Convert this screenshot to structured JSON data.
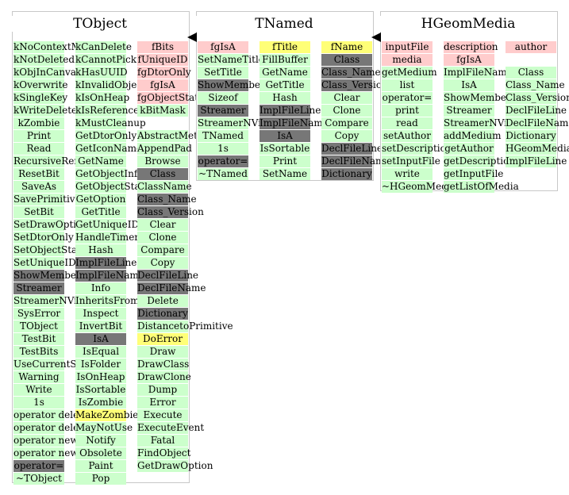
{
  "classes": [
    {
      "name": "TObject",
      "columns": [
        [
          {
            "text": "kNoContextMenu",
            "type": "green"
          },
          {
            "text": "kNotDeleted",
            "type": "green"
          },
          {
            "text": "kObjInCanvas",
            "type": "green"
          },
          {
            "text": "kOverwrite",
            "type": "green"
          },
          {
            "text": "kSingleKey",
            "type": "green"
          },
          {
            "text": "kWriteDelete",
            "type": "green"
          },
          {
            "text": "kZombie",
            "type": "green"
          },
          {
            "text": "Print",
            "type": "green"
          },
          {
            "text": "Read",
            "type": "green"
          },
          {
            "text": "RecursiveRemove",
            "type": "green"
          },
          {
            "text": "ResetBit",
            "type": "green"
          },
          {
            "text": "SaveAs",
            "type": "green"
          },
          {
            "text": "SavePrimitive",
            "type": "green"
          },
          {
            "text": "SetBit",
            "type": "green"
          },
          {
            "text": "SetDrawOption",
            "type": "green"
          },
          {
            "text": "SetDtorOnly",
            "type": "green"
          },
          {
            "text": "SetObjectStat",
            "type": "green"
          },
          {
            "text": "SetUniqueID",
            "type": "green"
          },
          {
            "text": "ShowMembers",
            "type": "grey"
          },
          {
            "text": "Streamer",
            "type": "grey"
          },
          {
            "text": "StreamerNVirtual",
            "type": "green"
          },
          {
            "text": "SysError",
            "type": "green"
          },
          {
            "text": "TObject",
            "type": "green"
          },
          {
            "text": "TestBit",
            "type": "green"
          },
          {
            "text": "TestBits",
            "type": "green"
          },
          {
            "text": "UseCurrentStyle",
            "type": "green"
          },
          {
            "text": "Warning",
            "type": "green"
          },
          {
            "text": "Write",
            "type": "green"
          },
          {
            "text": "1s",
            "type": "green"
          },
          {
            "text": "operator delete",
            "type": "green"
          },
          {
            "text": "operator delete[]",
            "type": "green"
          },
          {
            "text": "operator new",
            "type": "green"
          },
          {
            "text": "operator new[]",
            "type": "green"
          },
          {
            "text": "operator=",
            "type": "grey"
          },
          {
            "text": "~TObject",
            "type": "green"
          }
        ],
        [
          {
            "text": "kCanDelete",
            "type": "green"
          },
          {
            "text": "kCannotPick",
            "type": "green"
          },
          {
            "text": "kHasUUID",
            "type": "green"
          },
          {
            "text": "kInvalidObject",
            "type": "green"
          },
          {
            "text": "kIsOnHeap",
            "type": "green"
          },
          {
            "text": "kIsReferenced",
            "type": "green"
          },
          {
            "text": "kMustCleanup",
            "type": "green"
          },
          {
            "text": "GetDtorOnly",
            "type": "green"
          },
          {
            "text": "GetIconName",
            "type": "green"
          },
          {
            "text": "GetName",
            "type": "green"
          },
          {
            "text": "GetObjectInfo",
            "type": "green"
          },
          {
            "text": "GetObjectStat",
            "type": "green"
          },
          {
            "text": "GetOption",
            "type": "green"
          },
          {
            "text": "GetTitle",
            "type": "green"
          },
          {
            "text": "GetUniqueID",
            "type": "green"
          },
          {
            "text": "HandleTimer",
            "type": "green"
          },
          {
            "text": "Hash",
            "type": "green"
          },
          {
            "text": "ImplFileLine",
            "type": "grey"
          },
          {
            "text": "ImplFileName",
            "type": "grey"
          },
          {
            "text": "Info",
            "type": "green"
          },
          {
            "text": "InheritsFrom",
            "type": "green"
          },
          {
            "text": "Inspect",
            "type": "green"
          },
          {
            "text": "InvertBit",
            "type": "green"
          },
          {
            "text": "IsA",
            "type": "grey"
          },
          {
            "text": "IsEqual",
            "type": "green"
          },
          {
            "text": "IsFolder",
            "type": "green"
          },
          {
            "text": "IsOnHeap",
            "type": "green"
          },
          {
            "text": "IsSortable",
            "type": "green"
          },
          {
            "text": "IsZombie",
            "type": "green"
          },
          {
            "text": "MakeZombie",
            "type": "yellow"
          },
          {
            "text": "MayNotUse",
            "type": "green"
          },
          {
            "text": "Notify",
            "type": "green"
          },
          {
            "text": "Obsolete",
            "type": "green"
          },
          {
            "text": "Paint",
            "type": "green"
          },
          {
            "text": "Pop",
            "type": "green"
          }
        ],
        [
          {
            "text": "fBits",
            "type": "pink"
          },
          {
            "text": "fUniqueID",
            "type": "pink"
          },
          {
            "text": "fgDtorOnly",
            "type": "pink"
          },
          {
            "text": "fgIsA",
            "type": "pink"
          },
          {
            "text": "fgObjectStat",
            "type": "pink"
          },
          {
            "text": "kBitMask",
            "type": "green"
          },
          {
            "text": "",
            "type": "blank"
          },
          {
            "text": "AbstractMethod",
            "type": "green"
          },
          {
            "text": "AppendPad",
            "type": "green"
          },
          {
            "text": "Browse",
            "type": "green"
          },
          {
            "text": "Class",
            "type": "grey"
          },
          {
            "text": "ClassName",
            "type": "green"
          },
          {
            "text": "Class_Name",
            "type": "grey"
          },
          {
            "text": "Class_Version",
            "type": "grey"
          },
          {
            "text": "Clear",
            "type": "green"
          },
          {
            "text": "Clone",
            "type": "green"
          },
          {
            "text": "Compare",
            "type": "green"
          },
          {
            "text": "Copy",
            "type": "green"
          },
          {
            "text": "DeclFileLine",
            "type": "grey"
          },
          {
            "text": "DeclFileName",
            "type": "grey"
          },
          {
            "text": "Delete",
            "type": "green"
          },
          {
            "text": "Dictionary",
            "type": "grey"
          },
          {
            "text": "DistancetoPrimitive",
            "type": "green"
          },
          {
            "text": "DoError",
            "type": "yellow"
          },
          {
            "text": "Draw",
            "type": "green"
          },
          {
            "text": "DrawClass",
            "type": "green"
          },
          {
            "text": "DrawClone",
            "type": "green"
          },
          {
            "text": "Dump",
            "type": "green"
          },
          {
            "text": "Error",
            "type": "green"
          },
          {
            "text": "Execute",
            "type": "green"
          },
          {
            "text": "ExecuteEvent",
            "type": "green"
          },
          {
            "text": "Fatal",
            "type": "green"
          },
          {
            "text": "FindObject",
            "type": "green"
          },
          {
            "text": "GetDrawOption",
            "type": "green"
          }
        ]
      ]
    },
    {
      "name": "TNamed",
      "columns": [
        [
          {
            "text": "fgIsA",
            "type": "pink"
          },
          {
            "text": "SetNameTitle",
            "type": "green"
          },
          {
            "text": "SetTitle",
            "type": "green"
          },
          {
            "text": "ShowMembers",
            "type": "grey"
          },
          {
            "text": "Sizeof",
            "type": "green"
          },
          {
            "text": "Streamer",
            "type": "grey"
          },
          {
            "text": "StreamerNVirtual",
            "type": "green"
          },
          {
            "text": "TNamed",
            "type": "green"
          },
          {
            "text": "1s",
            "type": "green"
          },
          {
            "text": "operator=",
            "type": "grey"
          },
          {
            "text": "~TNamed",
            "type": "green"
          }
        ],
        [
          {
            "text": "fTitle",
            "type": "yellow"
          },
          {
            "text": "FillBuffer",
            "type": "green"
          },
          {
            "text": "GetName",
            "type": "green"
          },
          {
            "text": "GetTitle",
            "type": "green"
          },
          {
            "text": "Hash",
            "type": "green"
          },
          {
            "text": "ImplFileLine",
            "type": "grey"
          },
          {
            "text": "ImplFileName",
            "type": "grey"
          },
          {
            "text": "IsA",
            "type": "grey"
          },
          {
            "text": "IsSortable",
            "type": "green"
          },
          {
            "text": "Print",
            "type": "green"
          },
          {
            "text": "SetName",
            "type": "green"
          }
        ],
        [
          {
            "text": "fName",
            "type": "yellow"
          },
          {
            "text": "Class",
            "type": "grey"
          },
          {
            "text": "Class_Name",
            "type": "grey"
          },
          {
            "text": "Class_Version",
            "type": "grey"
          },
          {
            "text": "Clear",
            "type": "green"
          },
          {
            "text": "Clone",
            "type": "green"
          },
          {
            "text": "Compare",
            "type": "green"
          },
          {
            "text": "Copy",
            "type": "green"
          },
          {
            "text": "DeclFileLine",
            "type": "grey"
          },
          {
            "text": "DeclFileName",
            "type": "grey"
          },
          {
            "text": "Dictionary",
            "type": "grey"
          }
        ]
      ]
    },
    {
      "name": "HGeomMedia",
      "columns": [
        [
          {
            "text": "inputFile",
            "type": "pink"
          },
          {
            "text": "media",
            "type": "pink"
          },
          {
            "text": "getMedium",
            "type": "green"
          },
          {
            "text": "list",
            "type": "green"
          },
          {
            "text": "operator=",
            "type": "green"
          },
          {
            "text": "print",
            "type": "green"
          },
          {
            "text": "read",
            "type": "green"
          },
          {
            "text": "setAuthor",
            "type": "green"
          },
          {
            "text": "setDescription",
            "type": "green"
          },
          {
            "text": "setInputFile",
            "type": "green"
          },
          {
            "text": "write",
            "type": "green"
          },
          {
            "text": "~HGeomMedia",
            "type": "green"
          }
        ],
        [
          {
            "text": "description",
            "type": "pink"
          },
          {
            "text": "fgIsA",
            "type": "pink"
          },
          {
            "text": "ImplFileName",
            "type": "green"
          },
          {
            "text": "IsA",
            "type": "green"
          },
          {
            "text": "ShowMembers",
            "type": "green"
          },
          {
            "text": "Streamer",
            "type": "green"
          },
          {
            "text": "StreamerNVirtual",
            "type": "green"
          },
          {
            "text": "addMedium",
            "type": "green"
          },
          {
            "text": "getAuthor",
            "type": "green"
          },
          {
            "text": "getDescription",
            "type": "green"
          },
          {
            "text": "getInputFile",
            "type": "green"
          },
          {
            "text": "getListOfMedia",
            "type": "green"
          }
        ],
        [
          {
            "text": "author",
            "type": "pink"
          },
          {
            "text": "",
            "type": "blank"
          },
          {
            "text": "Class",
            "type": "green"
          },
          {
            "text": "Class_Name",
            "type": "green"
          },
          {
            "text": "Class_Version",
            "type": "green"
          },
          {
            "text": "DeclFileLine",
            "type": "green"
          },
          {
            "text": "DeclFileName",
            "type": "green"
          },
          {
            "text": "Dictionary",
            "type": "green"
          },
          {
            "text": "HGeomMedia",
            "type": "green"
          },
          {
            "text": "ImplFileLine",
            "type": "green"
          }
        ]
      ]
    }
  ]
}
